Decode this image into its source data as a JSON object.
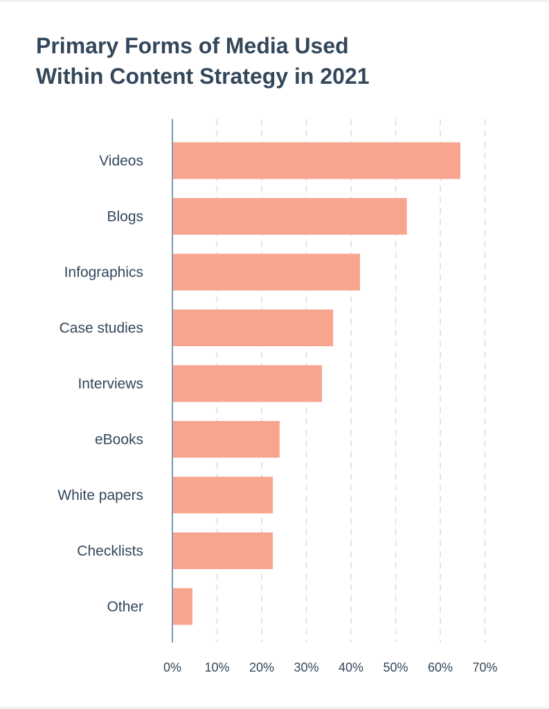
{
  "chart_data": {
    "type": "bar",
    "orientation": "horizontal",
    "title_lines": [
      "Primary Forms of Media Used",
      "Within Content Strategy in 2021"
    ],
    "categories": [
      "Videos",
      "Blogs",
      "Infographics",
      "Case studies",
      "Interviews",
      "eBooks",
      "White papers",
      "Checklists",
      "Other"
    ],
    "values": [
      64.5,
      52.5,
      42,
      36,
      33.5,
      24,
      22.5,
      22.5,
      4.5
    ],
    "value_unit": "%",
    "xlim": [
      0,
      70
    ],
    "x_ticks": [
      0,
      10,
      20,
      30,
      40,
      50,
      60,
      70
    ],
    "x_tick_labels": [
      "0%",
      "10%",
      "20%",
      "30%",
      "40%",
      "50%",
      "60%",
      "70%"
    ],
    "xlabel": "",
    "ylabel": "",
    "grid": "vertical dashed",
    "legend": "none",
    "bar_color": "#f8a58f",
    "axis_color": "#7c98b6",
    "grid_color": "#dfe3eb",
    "text_color": "#33475b"
  }
}
